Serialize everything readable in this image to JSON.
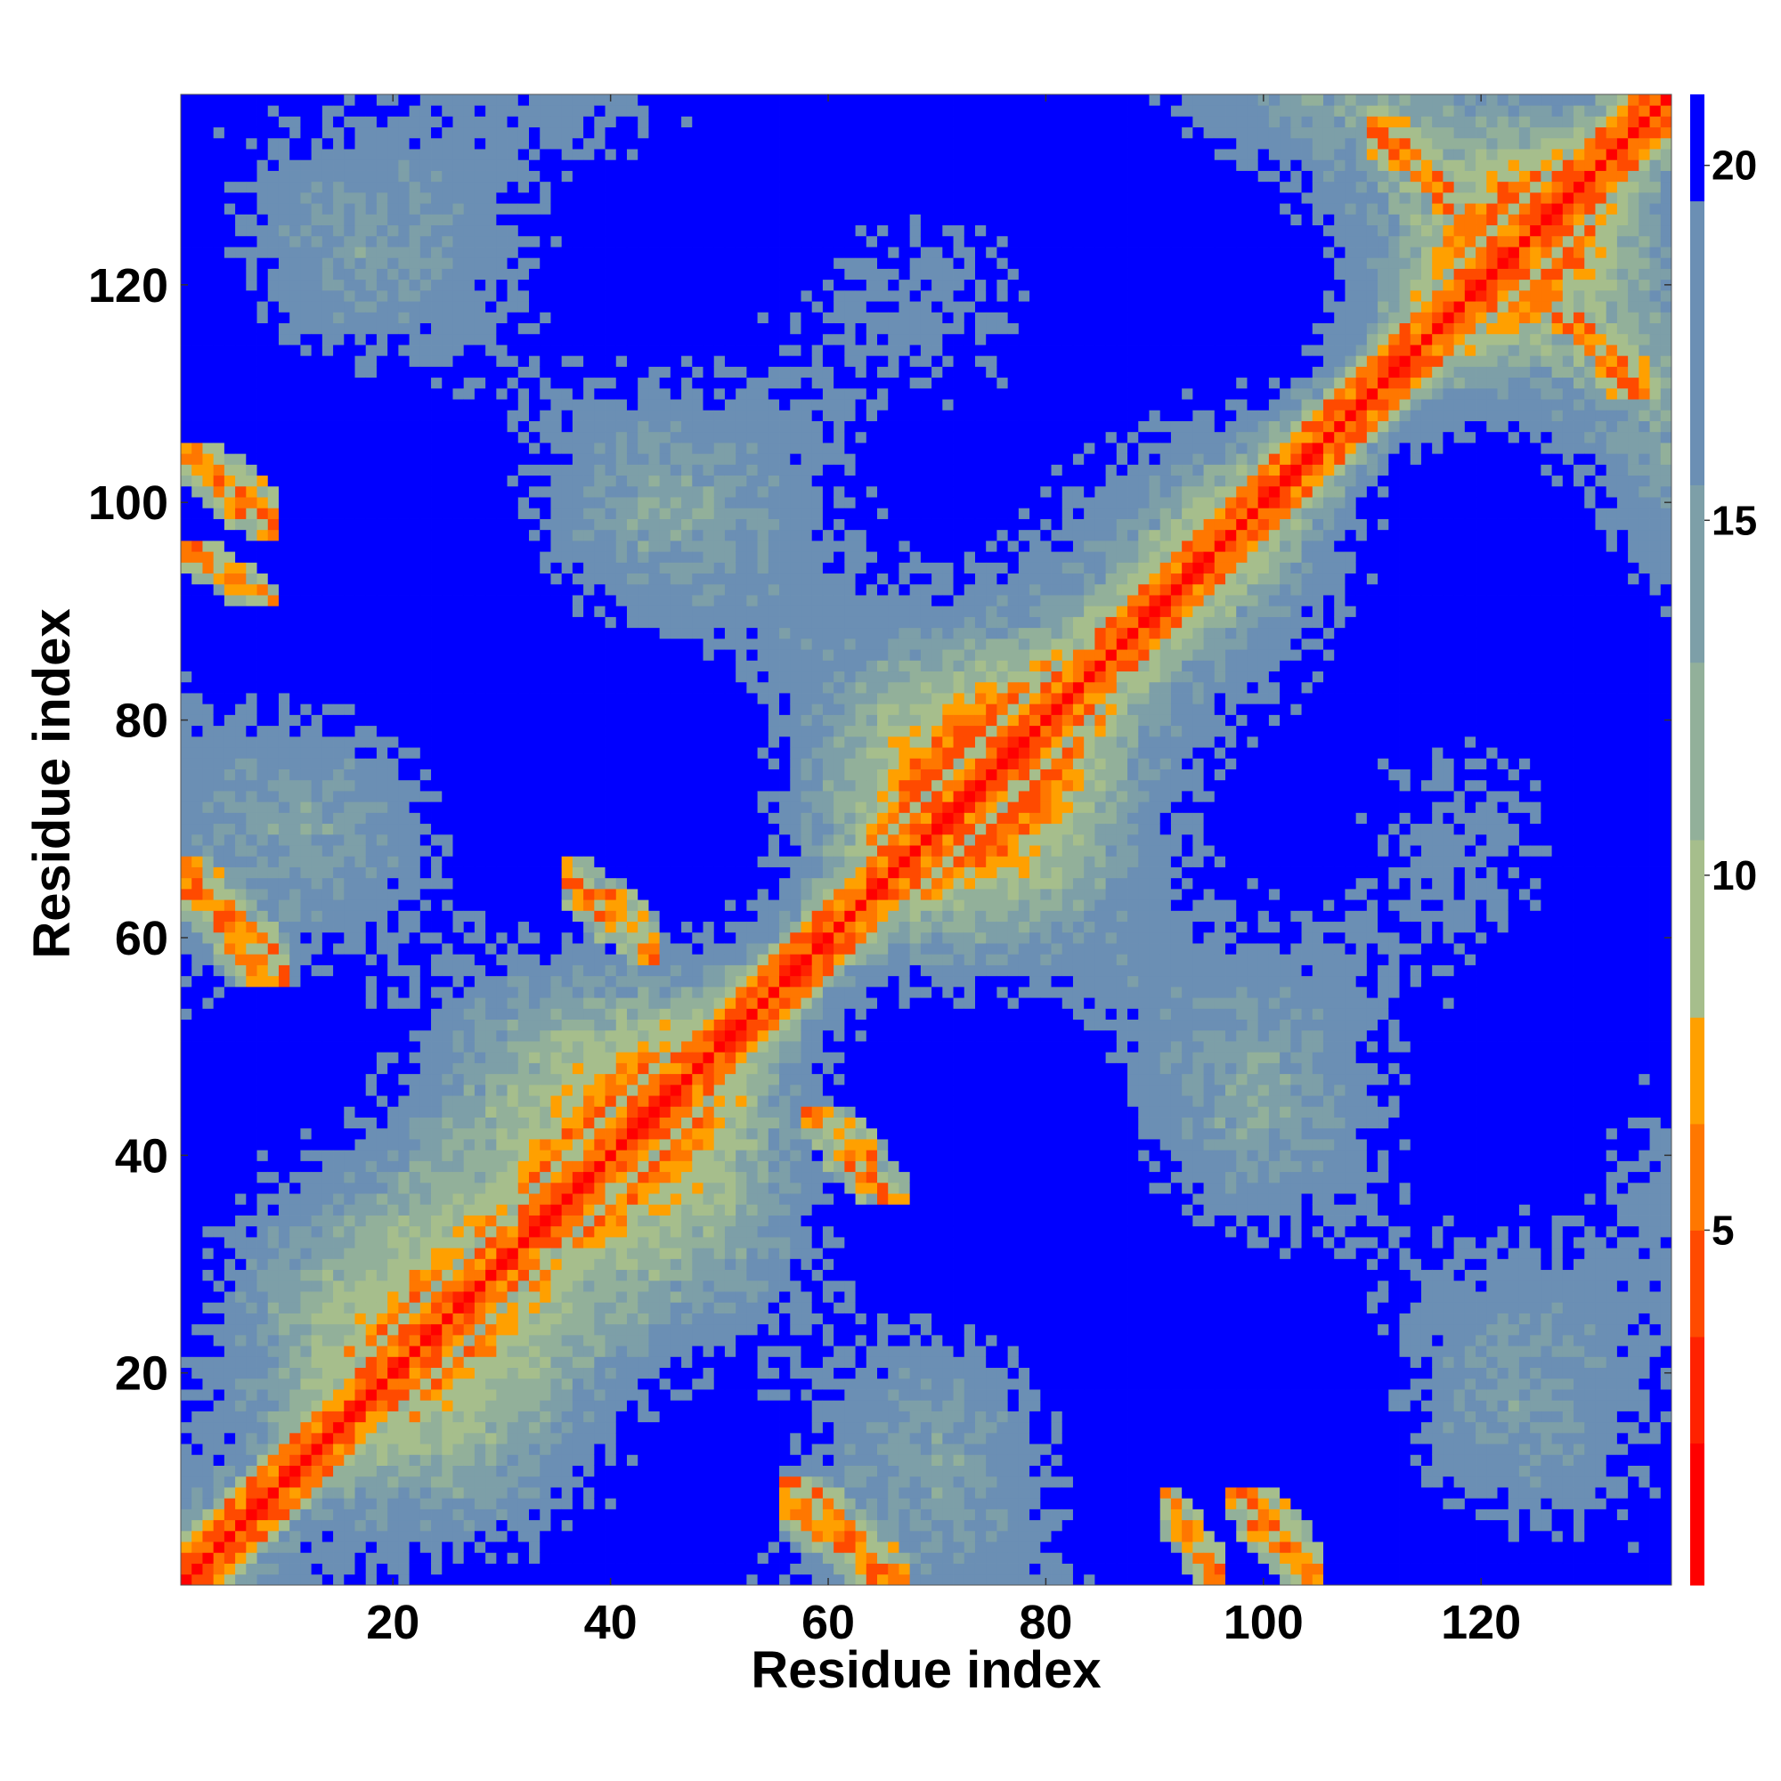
{
  "chart_data": {
    "type": "heatmap",
    "title": "",
    "xlabel": "Residue index",
    "ylabel": "Residue index",
    "n_residues": 137,
    "xlim": [
      0.5,
      137.5
    ],
    "ylim": [
      0.5,
      137.5
    ],
    "x_ticks": [
      20,
      40,
      60,
      80,
      100,
      120
    ],
    "y_ticks": [
      20,
      40,
      60,
      80,
      100,
      120
    ],
    "colorbar": {
      "ticks": [
        5,
        10,
        15,
        20
      ],
      "range": [
        0,
        21
      ],
      "colors": [
        "#ff0000",
        "#ff2200",
        "#ff4a00",
        "#ff7700",
        "#ffa000",
        "#a6be8c",
        "#92b09a",
        "#7d9fa8",
        "#6b8fb4",
        "#0000ff"
      ],
      "boundaries": [
        0,
        2,
        3.5,
        5,
        6.5,
        8,
        10.5,
        13,
        15.5,
        19.5,
        21
      ]
    },
    "secondary_structure_contacts": {
      "helix_diagonal_band": [
        [
          1,
          137
        ]
      ],
      "antiparallel_strands": [
        {
          "i": [
            2,
            9
          ],
          "j": [
            98,
            104
          ]
        },
        {
          "i": [
            1,
            10
          ],
          "j": [
            57,
            66
          ]
        },
        {
          "i": [
            36,
            44
          ],
          "j": [
            59,
            66
          ]
        },
        {
          "i": [
            56,
            66
          ],
          "j": [
            1,
            9
          ]
        },
        {
          "i": [
            91,
            96
          ],
          "j": [
            1,
            8
          ]
        },
        {
          "i": [
            99,
            105
          ],
          "j": [
            1,
            7
          ]
        },
        {
          "i": [
            110,
            117
          ],
          "j": [
            128,
            135
          ]
        }
      ]
    }
  }
}
